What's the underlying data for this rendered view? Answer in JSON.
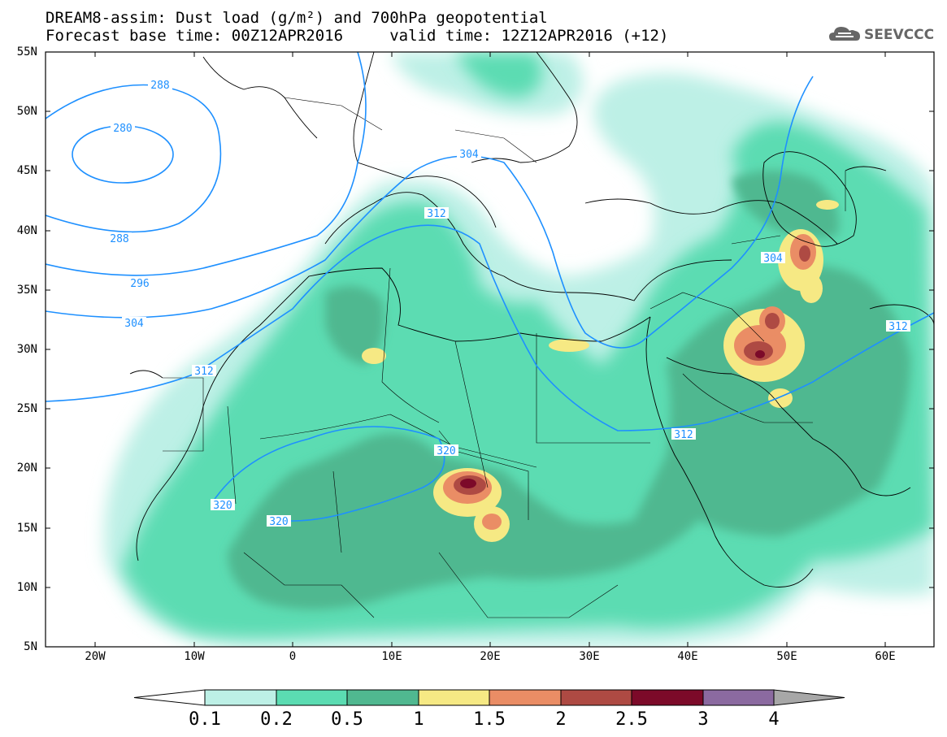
{
  "title": {
    "line1": "DREAM8-assim: Dust load (g/m²) and 700hPa geopotential",
    "line2": "Forecast base time: 00Z12APR2016     valid time: 12Z12APR2016 (+12)"
  },
  "logo": {
    "icon": "cloud-icon",
    "text": "SEEVCCC"
  },
  "axes": {
    "lat_labels": [
      "55N",
      "50N",
      "45N",
      "40N",
      "35N",
      "30N",
      "25N",
      "20N",
      "15N",
      "10N",
      "5N"
    ],
    "lon_labels": [
      "20W",
      "10W",
      "0",
      "10E",
      "20E",
      "30E",
      "40E",
      "50E",
      "60E"
    ]
  },
  "contours": {
    "color": "#1e90ff",
    "labels": [
      "288",
      "280",
      "288",
      "296",
      "304",
      "304",
      "312",
      "312",
      "320",
      "320",
      "320",
      "312",
      "304",
      "312"
    ]
  },
  "colorbar": {
    "labels": [
      "0.1",
      "0.2",
      "0.5",
      "1",
      "1.5",
      "2",
      "2.5",
      "3",
      "4"
    ],
    "colors": [
      "#bdf0e6",
      "#5bdcb2",
      "#50b890",
      "#f6e984",
      "#ea8d65",
      "#ae4a43",
      "#7c0a29",
      "#8b6aa0",
      "#a7a7a7"
    ]
  }
}
